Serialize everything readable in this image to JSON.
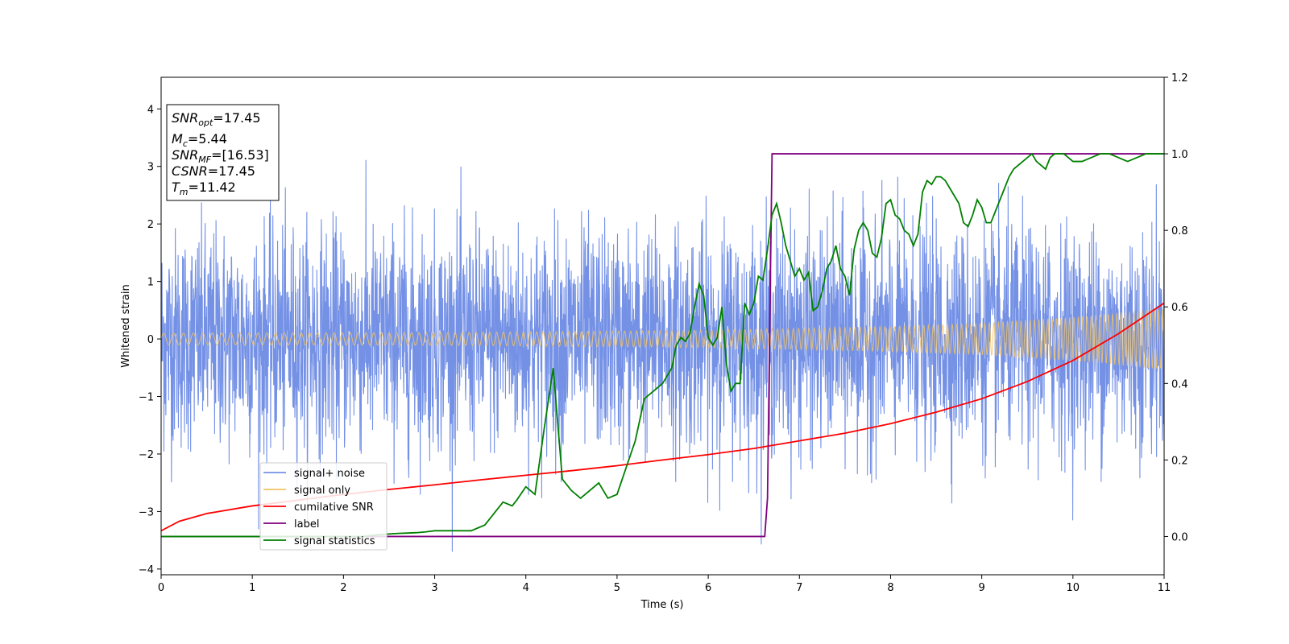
{
  "chart_data": {
    "type": "line",
    "xlabel": "Time (s)",
    "ylabel": "Whitened strain",
    "xlim": [
      0,
      11
    ],
    "ylim": [
      -4.1,
      4.55
    ],
    "y2lim": [
      -0.1,
      1.2
    ],
    "xticks": [
      0,
      1,
      2,
      3,
      4,
      5,
      6,
      7,
      8,
      9,
      10,
      11
    ],
    "yticks": [
      -4,
      -3,
      -2,
      -1,
      0,
      1,
      2,
      3,
      4
    ],
    "y2ticks": [
      "0.0",
      "0.2",
      "0.4",
      "0.6",
      "0.8",
      "1.0",
      "1.2"
    ],
    "grid": false,
    "legend_position": "lower-left",
    "info_box": {
      "lines": [
        {
          "main": "SNR",
          "sub": "opt",
          "value": "=17.45"
        },
        {
          "main": "M",
          "sub": "c",
          "value": "=5.44"
        },
        {
          "main": "SNR",
          "sub": "MF",
          "value": "=[16.53]"
        },
        {
          "main": "CSNR",
          "sub": "",
          "value": "=17.45"
        },
        {
          "main": "T",
          "sub": "m",
          "value": "=11.42"
        }
      ]
    },
    "series": [
      {
        "name": "signal+ noise",
        "color": "#7491e6",
        "axis": "left",
        "kind": "noise-band",
        "typical_range": [
          -1.2,
          1.3
        ],
        "peak_range": [
          -3.7,
          3.6
        ]
      },
      {
        "name": "signal only",
        "color": "#f2c464",
        "axis": "left",
        "kind": "chirp-envelope",
        "amplitude_points": [
          [
            0,
            0.1
          ],
          [
            3,
            0.11
          ],
          [
            6,
            0.15
          ],
          [
            8,
            0.22
          ],
          [
            9,
            0.28
          ],
          [
            10,
            0.38
          ],
          [
            11,
            0.53
          ]
        ]
      },
      {
        "name": "cumilative SNR",
        "color": "#ff0000",
        "axis": "right",
        "x": [
          0,
          0.2,
          0.5,
          1,
          1.5,
          2,
          2.5,
          3,
          3.5,
          4,
          4.5,
          5,
          5.5,
          6,
          6.5,
          7,
          7.5,
          8,
          8.5,
          9,
          9.5,
          10,
          10.5,
          11
        ],
        "y": [
          0.015,
          0.04,
          0.06,
          0.08,
          0.095,
          0.11,
          0.123,
          0.135,
          0.148,
          0.16,
          0.172,
          0.185,
          0.2,
          0.214,
          0.23,
          0.25,
          0.27,
          0.295,
          0.325,
          0.36,
          0.405,
          0.46,
          0.53,
          0.61
        ]
      },
      {
        "name": "label",
        "color": "#800080",
        "axis": "right",
        "x": [
          0,
          6.62,
          6.65,
          6.7,
          11
        ],
        "y": [
          0,
          0,
          0.1,
          1,
          1
        ]
      },
      {
        "name": "signal statistics",
        "color": "#008000",
        "axis": "right",
        "x": [
          0,
          2.2,
          2.4,
          2.6,
          2.8,
          2.9,
          3,
          3.2,
          3.4,
          3.55,
          3.65,
          3.75,
          3.85,
          3.9,
          4,
          4.1,
          4.2,
          4.3,
          4.4,
          4.5,
          4.6,
          4.7,
          4.8,
          4.9,
          5.0,
          5.1,
          5.2,
          5.3,
          5.4,
          5.5,
          5.55,
          5.6,
          5.65,
          5.7,
          5.75,
          5.8,
          5.85,
          5.9,
          5.95,
          6.0,
          6.05,
          6.1,
          6.15,
          6.2,
          6.25,
          6.3,
          6.35,
          6.4,
          6.45,
          6.5,
          6.55,
          6.6,
          6.65,
          6.7,
          6.75,
          6.8,
          6.85,
          6.9,
          6.95,
          7.0,
          7.05,
          7.1,
          7.15,
          7.2,
          7.25,
          7.3,
          7.35,
          7.4,
          7.45,
          7.5,
          7.55,
          7.6,
          7.65,
          7.7,
          7.75,
          7.8,
          7.85,
          7.9,
          7.95,
          8.0,
          8.05,
          8.1,
          8.15,
          8.2,
          8.25,
          8.3,
          8.35,
          8.4,
          8.45,
          8.5,
          8.55,
          8.6,
          8.65,
          8.7,
          8.75,
          8.8,
          8.85,
          8.9,
          8.95,
          9.0,
          9.05,
          9.1,
          9.15,
          9.2,
          9.25,
          9.3,
          9.35,
          9.4,
          9.45,
          9.5,
          9.55,
          9.6,
          9.65,
          9.7,
          9.75,
          9.8,
          9.85,
          9.9,
          9.95,
          10.0,
          10.1,
          10.2,
          10.3,
          10.4,
          10.5,
          10.6,
          10.7,
          10.8,
          10.9,
          11
        ],
        "y": [
          0,
          0,
          0.005,
          0.008,
          0.01,
          0.012,
          0.015,
          0.015,
          0.015,
          0.03,
          0.06,
          0.09,
          0.08,
          0.095,
          0.13,
          0.11,
          0.28,
          0.44,
          0.15,
          0.12,
          0.1,
          0.12,
          0.14,
          0.1,
          0.11,
          0.18,
          0.25,
          0.36,
          0.38,
          0.4,
          0.42,
          0.44,
          0.5,
          0.52,
          0.51,
          0.53,
          0.6,
          0.66,
          0.63,
          0.52,
          0.5,
          0.52,
          0.6,
          0.45,
          0.38,
          0.4,
          0.4,
          0.61,
          0.58,
          0.61,
          0.68,
          0.67,
          0.75,
          0.84,
          0.87,
          0.82,
          0.76,
          0.72,
          0.68,
          0.7,
          0.67,
          0.69,
          0.59,
          0.6,
          0.64,
          0.7,
          0.72,
          0.76,
          0.7,
          0.68,
          0.63,
          0.75,
          0.8,
          0.82,
          0.8,
          0.74,
          0.73,
          0.78,
          0.87,
          0.88,
          0.84,
          0.83,
          0.8,
          0.79,
          0.76,
          0.79,
          0.9,
          0.93,
          0.92,
          0.94,
          0.94,
          0.93,
          0.91,
          0.89,
          0.87,
          0.82,
          0.81,
          0.84,
          0.88,
          0.86,
          0.82,
          0.82,
          0.85,
          0.88,
          0.91,
          0.94,
          0.96,
          0.97,
          0.98,
          0.99,
          1.0,
          0.98,
          0.97,
          0.96,
          0.99,
          1.0,
          1.0,
          1.0,
          0.99,
          0.98,
          0.98,
          0.99,
          1.0,
          1.0,
          0.99,
          0.98,
          0.99,
          1.0,
          1.0,
          1.0
        ]
      }
    ]
  }
}
